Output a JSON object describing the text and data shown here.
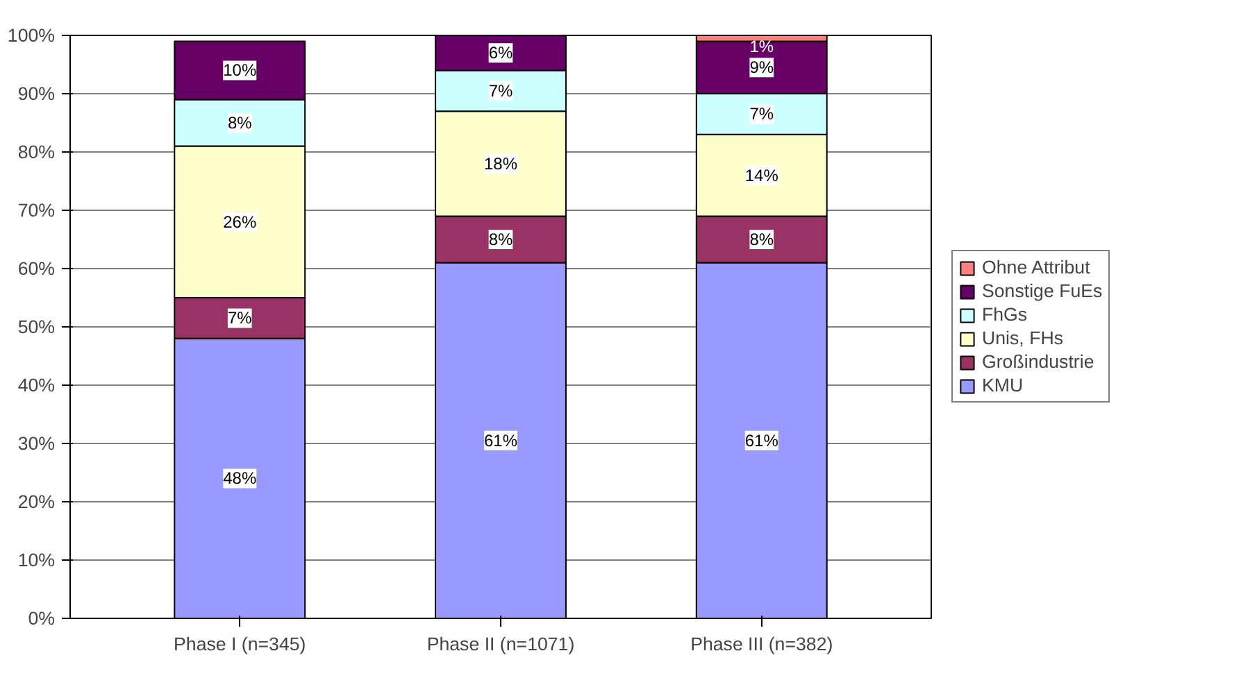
{
  "chart_data": {
    "type": "bar",
    "stacked": true,
    "categories": [
      "Phase I (n=345)",
      "Phase II (n=1071)",
      "Phase III (n=382)"
    ],
    "series": [
      {
        "name": "KMU",
        "color": "#9999ff",
        "values": [
          48,
          61,
          61
        ],
        "value_labels": [
          "48%",
          "61%",
          "61%"
        ]
      },
      {
        "name": "Großindustrie",
        "color": "#993366",
        "values": [
          7,
          8,
          8
        ],
        "value_labels": [
          "7%",
          "8%",
          "8%"
        ]
      },
      {
        "name": "Unis, FHs",
        "color": "#ffffcc",
        "values": [
          26,
          18,
          14
        ],
        "value_labels": [
          "26%",
          "18%",
          "14%"
        ]
      },
      {
        "name": "FhGs",
        "color": "#ccffff",
        "values": [
          8,
          7,
          7
        ],
        "value_labels": [
          "8%",
          "7%",
          "7%"
        ]
      },
      {
        "name": "Sonstige FuEs",
        "color": "#660066",
        "values": [
          10,
          6,
          9
        ],
        "value_labels": [
          "10%",
          "6%",
          "9%"
        ]
      },
      {
        "name": "Ohne Attribut",
        "color": "#ff8080",
        "values": [
          null,
          null,
          1
        ],
        "value_labels": [
          null,
          null,
          "1%"
        ]
      }
    ],
    "ylim": [
      0,
      100
    ],
    "yticks": [
      {
        "value": 0,
        "label": "0%"
      },
      {
        "value": 10,
        "label": "10%"
      },
      {
        "value": 20,
        "label": "20%"
      },
      {
        "value": 30,
        "label": "30%"
      },
      {
        "value": 40,
        "label": "40%"
      },
      {
        "value": 50,
        "label": "50%"
      },
      {
        "value": 60,
        "label": "60%"
      },
      {
        "value": 70,
        "label": "70%"
      },
      {
        "value": 80,
        "label": "80%"
      },
      {
        "value": 90,
        "label": "90%"
      },
      {
        "value": 100,
        "label": "100%"
      }
    ],
    "grid": "y",
    "legend": "right",
    "data_labels": true
  }
}
